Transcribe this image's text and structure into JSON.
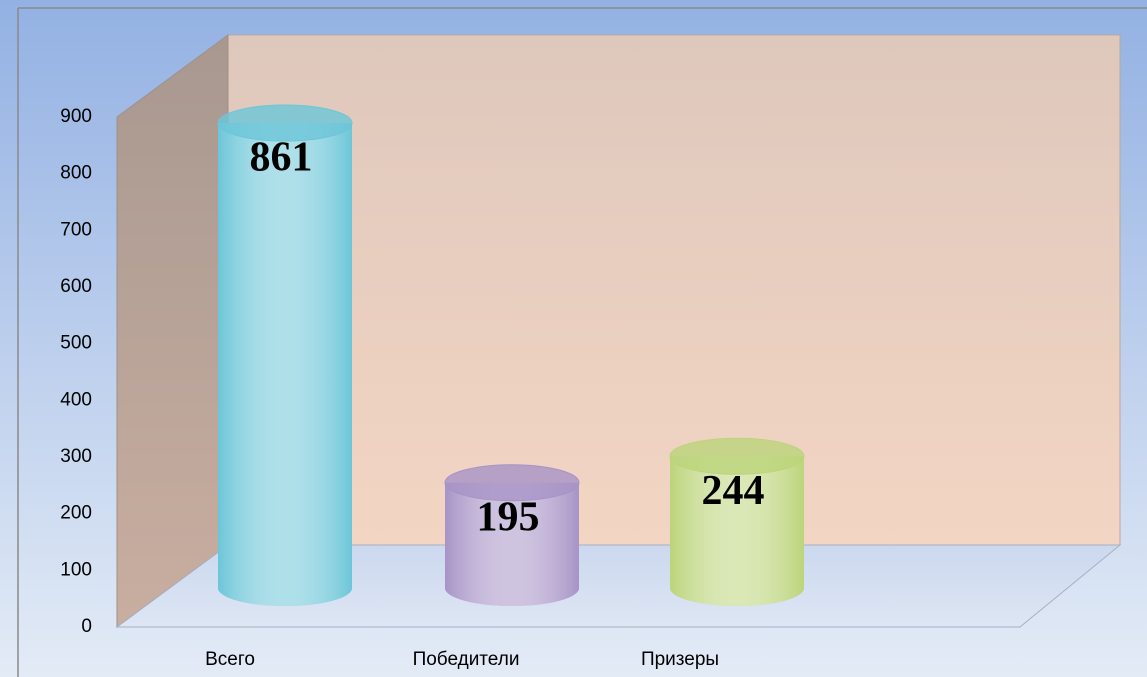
{
  "chart_data": {
    "type": "bar3d",
    "categories": [
      "Всего",
      "Победители",
      "Призеры"
    ],
    "values": [
      861,
      195,
      244
    ],
    "colors": [
      "#6cc6d8",
      "#a793c6",
      "#bcd47a"
    ],
    "ylim": [
      0,
      900
    ],
    "yticks": [
      0,
      100,
      200,
      300,
      400,
      500,
      600,
      700,
      800,
      900
    ]
  }
}
